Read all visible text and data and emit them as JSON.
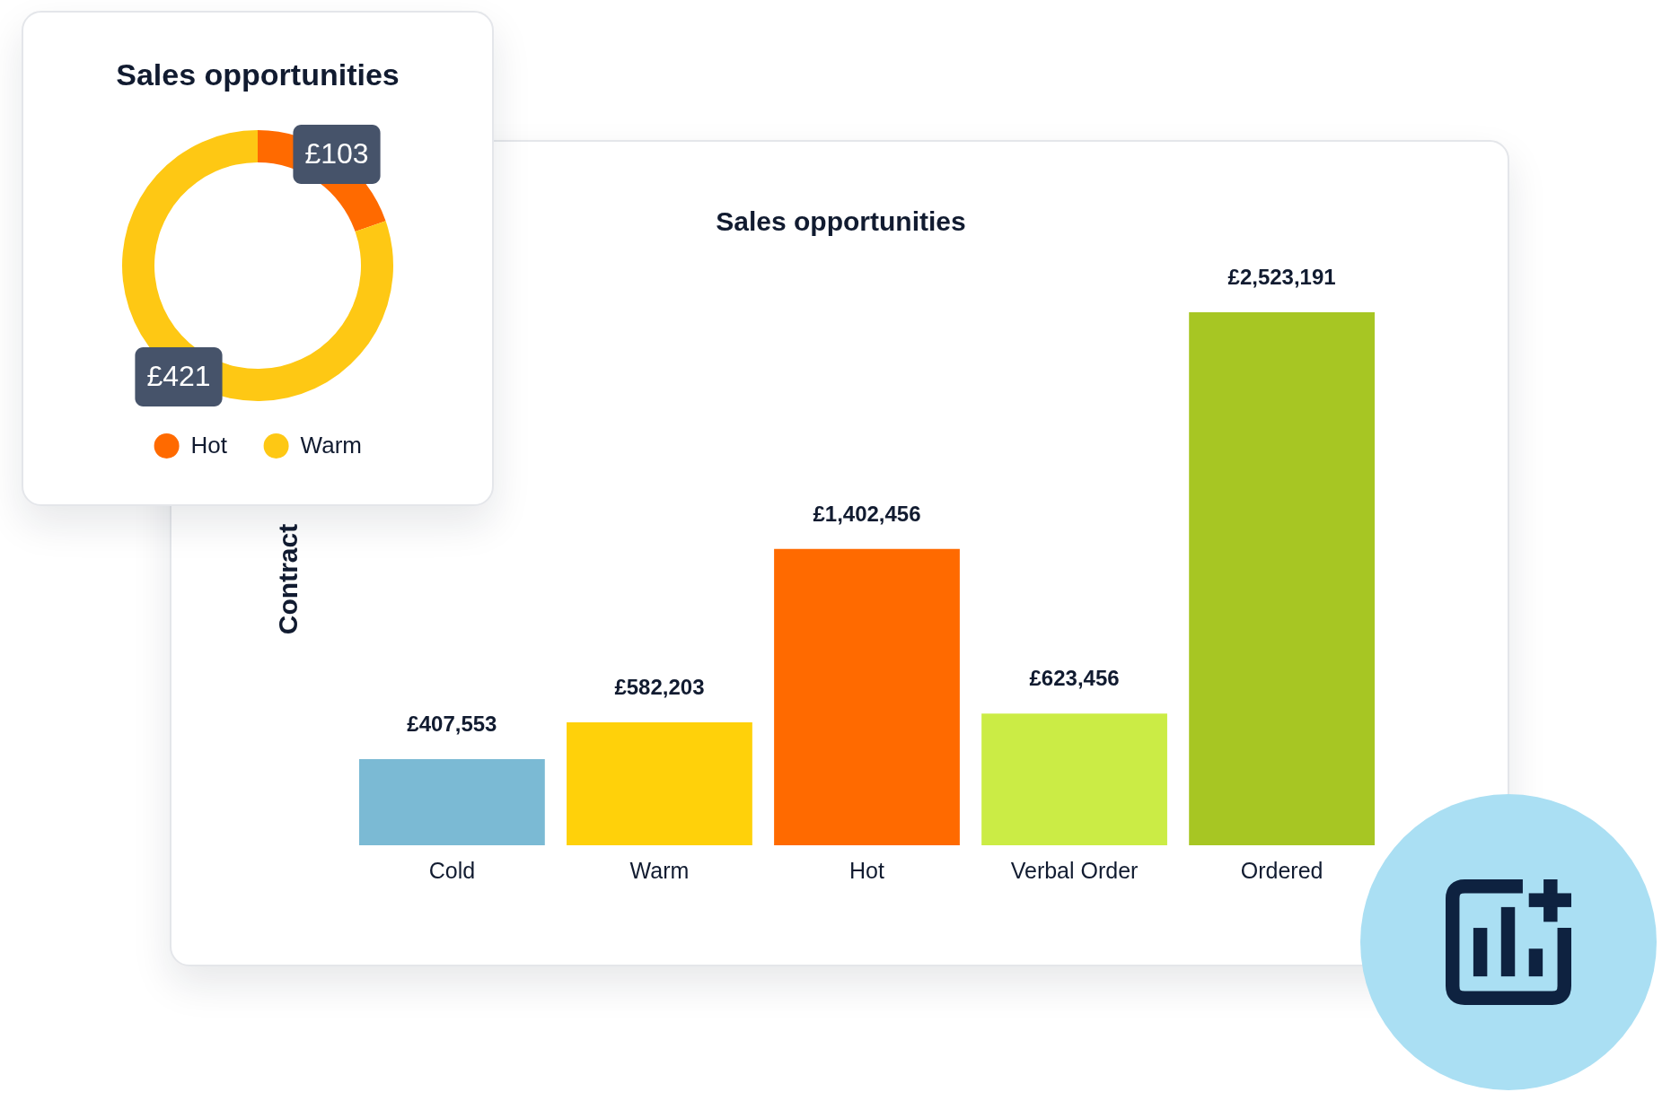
{
  "chart_data": [
    {
      "type": "donut",
      "title": "Sales opportunities",
      "categories": [
        "Hot",
        "Warm"
      ],
      "values": [
        103,
        421
      ],
      "colors": [
        "#ff6a00",
        "#fec814"
      ],
      "value_labels": [
        "£103",
        "£421"
      ],
      "legend": "bottom"
    },
    {
      "type": "bar",
      "title": "Sales opportunities",
      "ylabel": "Contract",
      "categories": [
        "Cold",
        "Warm",
        "Hot",
        "Verbal Order",
        "Ordered"
      ],
      "values": [
        407553,
        582203,
        1402456,
        623456,
        2523191
      ],
      "colors": [
        "#7bbad4",
        "#ffd10a",
        "#ff6a00",
        "#cbec45",
        "#a7c623"
      ],
      "value_labels": [
        "£407,553",
        "£582,203",
        "£1,402,456",
        "£623,456",
        "£2,523,191"
      ],
      "tick_labels": "x"
    }
  ]
}
